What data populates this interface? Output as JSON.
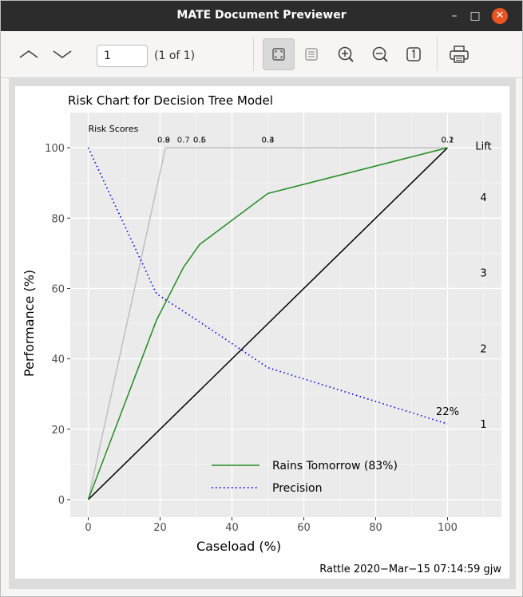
{
  "window": {
    "title": "MATE Document Previewer"
  },
  "toolbar": {
    "page_value": "1",
    "page_count": "(1 of 1)",
    "icons": [
      "chevron-up-icon",
      "chevron-down-icon",
      "fit-page-icon",
      "fit-width-icon",
      "zoom-in-icon",
      "zoom-out-icon",
      "actual-size-icon",
      "print-icon"
    ]
  },
  "chart_data": {
    "type": "line",
    "title": "Risk Chart for Decision Tree Model",
    "xlabel": "Caseload (%)",
    "ylabel": "Performance (%)",
    "xlim": [
      0,
      100
    ],
    "ylim": [
      0,
      100
    ],
    "x_ticks": [
      0,
      20,
      40,
      60,
      80,
      100
    ],
    "y_ticks": [
      0,
      20,
      40,
      60,
      80,
      100
    ],
    "grid": true,
    "legend_position": "bottom-center",
    "series": [
      {
        "name": "Rains Tomorrow (83%)",
        "color": "#228b22",
        "style": "solid",
        "x": [
          0,
          19,
          26.5,
          31,
          50,
          100
        ],
        "y": [
          0,
          51,
          66,
          72.5,
          87,
          100
        ]
      },
      {
        "name": "Precision",
        "color": "#0000ff",
        "style": "dotted",
        "x": [
          0,
          19,
          26.5,
          31,
          50,
          100
        ],
        "y": [
          100,
          58.5,
          53.5,
          50.5,
          37.5,
          21.5
        ]
      },
      {
        "name": "",
        "color": "#bebebe",
        "style": "solid",
        "x": [
          0,
          21.5,
          100
        ],
        "y": [
          0,
          100,
          100
        ]
      },
      {
        "name": "",
        "color": "#000000",
        "style": "solid",
        "x": [
          0,
          100
        ],
        "y": [
          0,
          100
        ]
      }
    ],
    "risk_scores_label": "Risk Scores",
    "risk_score_labels": [
      {
        "x": 21,
        "text": "0.8"
      },
      {
        "x": 21,
        "text": "0.9"
      },
      {
        "x": 26.5,
        "text": "0.7"
      },
      {
        "x": 31,
        "text": "0.5"
      },
      {
        "x": 31,
        "text": "0.6"
      },
      {
        "x": 50,
        "text": "0.3"
      },
      {
        "x": 50,
        "text": "0.4"
      },
      {
        "x": 100,
        "text": "0.1"
      },
      {
        "x": 100,
        "text": "0.2"
      }
    ],
    "precision_end_label": "22%",
    "lift_label": "Lift",
    "lift_ticks": [
      {
        "y": 21.5,
        "text": "1"
      },
      {
        "y": 43,
        "text": "2"
      },
      {
        "y": 64.5,
        "text": "3"
      },
      {
        "y": 86,
        "text": "4"
      }
    ],
    "footer": "Rattle 2020−Mar−15 07:14:59 gjw"
  }
}
